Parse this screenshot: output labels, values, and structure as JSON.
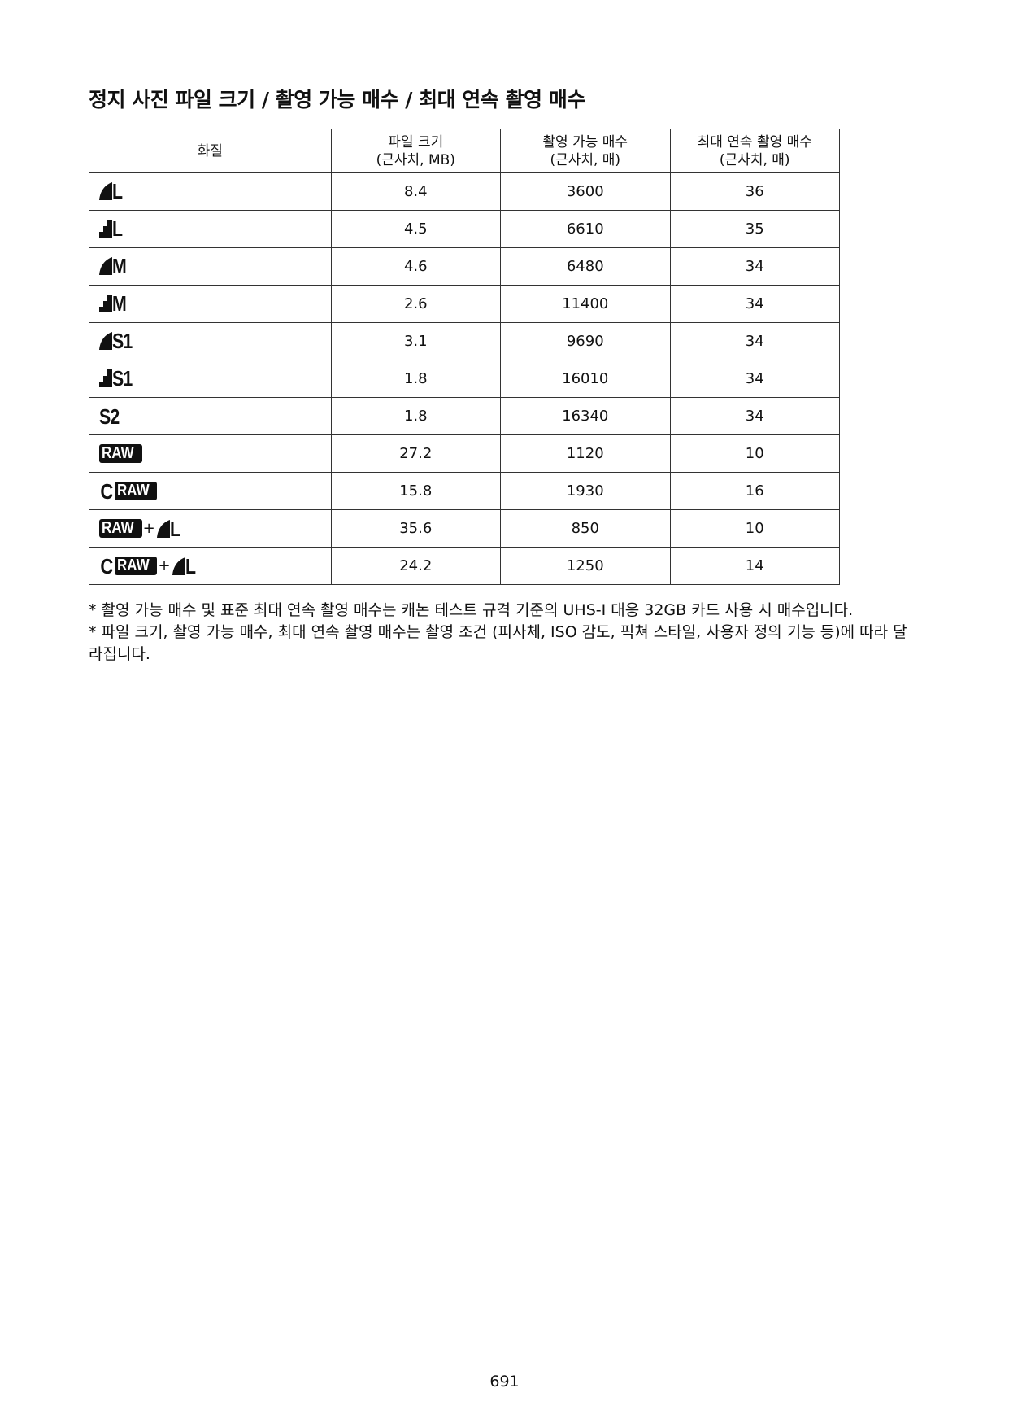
{
  "page": {
    "title": "정지 사진 파일 크기 / 촬영 가능 매수 / 최대 연속 촬영 매수",
    "page_number": "691"
  },
  "table": {
    "headers": {
      "quality": "화질",
      "file_size_l1": "파일 크기",
      "file_size_l2": "(근사치, MB)",
      "shots_l1": "촬영 가능 매수",
      "shots_l2": "(근사치, 매)",
      "burst_l1": "최대 연속 촬영 매수",
      "burst_l2": "(근사치, 매)"
    },
    "rows": [
      {
        "icon": "fine-large-icon",
        "letters": "L",
        "file_size": "8.4",
        "shots": "3600",
        "burst": "36"
      },
      {
        "icon": "normal-large-icon",
        "letters": "L",
        "file_size": "4.5",
        "shots": "6610",
        "burst": "35"
      },
      {
        "icon": "fine-medium-icon",
        "letters": "M",
        "file_size": "4.6",
        "shots": "6480",
        "burst": "34"
      },
      {
        "icon": "normal-medium-icon",
        "letters": "M",
        "file_size": "2.6",
        "shots": "11400",
        "burst": "34"
      },
      {
        "icon": "fine-small1-icon",
        "letters": "S1",
        "file_size": "3.1",
        "shots": "9690",
        "burst": "34"
      },
      {
        "icon": "normal-small1-icon",
        "letters": "S1",
        "file_size": "1.8",
        "shots": "16010",
        "burst": "34"
      },
      {
        "icon": "small2-icon",
        "letters": "S2",
        "file_size": "1.8",
        "shots": "16340",
        "burst": "34"
      },
      {
        "icon": "raw-icon",
        "letters": "RAW",
        "file_size": "27.2",
        "shots": "1120",
        "burst": "10"
      },
      {
        "icon": "craw-icon",
        "letters": "RAW",
        "prefix": "C",
        "file_size": "15.8",
        "shots": "1930",
        "burst": "16"
      },
      {
        "icon": "raw-plus-fine-large-icon",
        "letters": "RAW",
        "plus": "+",
        "second": "L",
        "file_size": "35.6",
        "shots": "850",
        "burst": "10"
      },
      {
        "icon": "craw-plus-fine-large-icon",
        "letters": "RAW",
        "prefix": "C",
        "plus": "+",
        "second": "L",
        "file_size": "24.2",
        "shots": "1250",
        "burst": "14"
      }
    ]
  },
  "notes": [
    "* 촬영 가능 매수 및 표준 최대 연속 촬영 매수는 캐논 테스트 규격 기준의 UHS-I 대응 32GB 카드 사용 시 매수입니다.",
    "* 파일 크기, 촬영 가능 매수, 최대 연속 촬영 매수는 촬영 조건 (피사체, ISO 감도, 픽쳐 스타일, 사용자 정의 기능 등)에 따라 달라집니다."
  ]
}
